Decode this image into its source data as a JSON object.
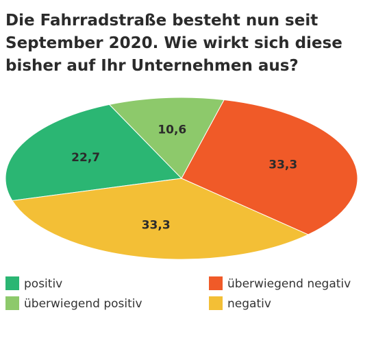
{
  "chart_data": {
    "type": "pie",
    "title": "Die Fahrradstraße besteht nun seit September 2020. Wie wirkt sich diese bisher auf Ihr Unternehmen aus?",
    "categories": [
      "positiv",
      "überwiegend positiv",
      "überwiegend negativ",
      "negativ"
    ],
    "values": [
      22.7,
      10.6,
      33.3,
      33.3
    ],
    "value_labels": [
      "22,7",
      "10,6",
      "33,3",
      "33,3"
    ],
    "colors": [
      "#2bb673",
      "#8dc96b",
      "#f05a28",
      "#f3bf36"
    ]
  }
}
